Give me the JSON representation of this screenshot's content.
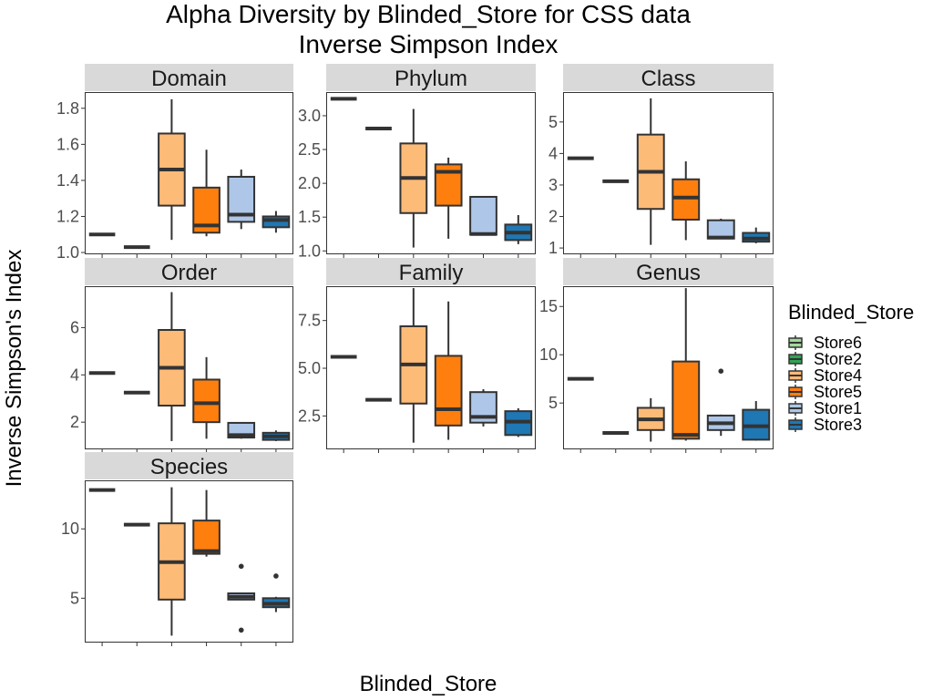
{
  "chart_data": {
    "type": "boxplot",
    "title": "Alpha Diversity by Blinded_Store for CSS data",
    "subtitle": "Inverse Simpson Index",
    "xlabel": "Blinded_Store",
    "ylabel": "Inverse Simpson's Index",
    "legend": {
      "title": "Blinded_Store",
      "position": "right",
      "entries": [
        {
          "name": "Store6",
          "color": "#a1d99b"
        },
        {
          "name": "Store2",
          "color": "#31a354"
        },
        {
          "name": "Store4",
          "color": "#fdbb78"
        },
        {
          "name": "Store5",
          "color": "#ff7f0e"
        },
        {
          "name": "Store1",
          "color": "#aec7e8"
        },
        {
          "name": "Store3",
          "color": "#1f77b4"
        }
      ]
    },
    "categories": [
      "Store6",
      "Store2",
      "Store4",
      "Store5",
      "Store1",
      "Store3"
    ],
    "grid": false,
    "panels": [
      {
        "label": "Domain",
        "ylim": [
          0.99,
          1.89
        ],
        "yticks": [
          {
            "v": 1.0,
            "t": "1.0"
          },
          {
            "v": 1.2,
            "t": "1.2"
          },
          {
            "v": 1.4,
            "t": "1.4"
          },
          {
            "v": 1.6,
            "t": "1.6"
          },
          {
            "v": 1.8,
            "t": "1.8"
          }
        ],
        "boxes": [
          {
            "store": "Store6",
            "min": 1.1,
            "q1": 1.1,
            "median": 1.1,
            "q3": 1.1,
            "max": 1.1,
            "outliers": []
          },
          {
            "store": "Store2",
            "min": 1.03,
            "q1": 1.03,
            "median": 1.03,
            "q3": 1.03,
            "max": 1.03,
            "outliers": []
          },
          {
            "store": "Store4",
            "min": 1.07,
            "q1": 1.26,
            "median": 1.46,
            "q3": 1.66,
            "max": 1.85,
            "outliers": []
          },
          {
            "store": "Store5",
            "min": 1.09,
            "q1": 1.11,
            "median": 1.15,
            "q3": 1.36,
            "max": 1.57,
            "outliers": []
          },
          {
            "store": "Store1",
            "min": 1.13,
            "q1": 1.17,
            "median": 1.21,
            "q3": 1.42,
            "max": 1.46,
            "outliers": []
          },
          {
            "store": "Store3",
            "min": 1.11,
            "q1": 1.14,
            "median": 1.18,
            "q3": 1.2,
            "max": 1.23,
            "outliers": []
          }
        ]
      },
      {
        "label": "Phylum",
        "ylim": [
          0.95,
          3.35
        ],
        "yticks": [
          {
            "v": 1.0,
            "t": "1.0"
          },
          {
            "v": 1.5,
            "t": "1.5"
          },
          {
            "v": 2.0,
            "t": "2.0"
          },
          {
            "v": 2.5,
            "t": "2.5"
          },
          {
            "v": 3.0,
            "t": "3.0"
          }
        ],
        "boxes": [
          {
            "store": "Store6",
            "min": 3.25,
            "q1": 3.25,
            "median": 3.25,
            "q3": 3.25,
            "max": 3.25,
            "outliers": []
          },
          {
            "store": "Store2",
            "min": 2.81,
            "q1": 2.81,
            "median": 2.81,
            "q3": 2.81,
            "max": 2.81,
            "outliers": []
          },
          {
            "store": "Store4",
            "min": 1.05,
            "q1": 1.56,
            "median": 2.08,
            "q3": 2.59,
            "max": 3.1,
            "outliers": []
          },
          {
            "store": "Store5",
            "min": 1.18,
            "q1": 1.67,
            "median": 2.17,
            "q3": 2.28,
            "max": 2.38,
            "outliers": []
          },
          {
            "store": "Store1",
            "min": 1.24,
            "q1": 1.24,
            "median": 1.25,
            "q3": 1.8,
            "max": 1.8,
            "outliers": []
          },
          {
            "store": "Store3",
            "min": 1.1,
            "q1": 1.16,
            "median": 1.27,
            "q3": 1.39,
            "max": 1.53,
            "outliers": []
          }
        ]
      },
      {
        "label": "Class",
        "ylim": [
          0.8,
          5.95
        ],
        "yticks": [
          {
            "v": 1,
            "t": "1"
          },
          {
            "v": 2,
            "t": "2"
          },
          {
            "v": 3,
            "t": "3"
          },
          {
            "v": 4,
            "t": "4"
          },
          {
            "v": 5,
            "t": "5"
          }
        ],
        "boxes": [
          {
            "store": "Store6",
            "min": 3.85,
            "q1": 3.85,
            "median": 3.85,
            "q3": 3.85,
            "max": 3.85,
            "outliers": []
          },
          {
            "store": "Store2",
            "min": 3.12,
            "q1": 3.12,
            "median": 3.12,
            "q3": 3.12,
            "max": 3.12,
            "outliers": []
          },
          {
            "store": "Store4",
            "min": 1.1,
            "q1": 2.24,
            "median": 3.42,
            "q3": 4.6,
            "max": 5.75,
            "outliers": []
          },
          {
            "store": "Store5",
            "min": 1.25,
            "q1": 1.9,
            "median": 2.6,
            "q3": 3.18,
            "max": 3.75,
            "outliers": []
          },
          {
            "store": "Store1",
            "min": 1.28,
            "q1": 1.3,
            "median": 1.33,
            "q3": 1.88,
            "max": 1.93,
            "outliers": []
          },
          {
            "store": "Store3",
            "min": 1.15,
            "q1": 1.2,
            "median": 1.3,
            "q3": 1.48,
            "max": 1.65,
            "outliers": []
          }
        ]
      },
      {
        "label": "Order",
        "ylim": [
          0.85,
          7.75
        ],
        "yticks": [
          {
            "v": 2,
            "t": "2"
          },
          {
            "v": 4,
            "t": "4"
          },
          {
            "v": 6,
            "t": "6"
          }
        ],
        "boxes": [
          {
            "store": "Store6",
            "min": 4.08,
            "q1": 4.08,
            "median": 4.08,
            "q3": 4.08,
            "max": 4.08,
            "outliers": []
          },
          {
            "store": "Store2",
            "min": 3.25,
            "q1": 3.25,
            "median": 3.25,
            "q3": 3.25,
            "max": 3.25,
            "outliers": []
          },
          {
            "store": "Store4",
            "min": 1.2,
            "q1": 2.7,
            "median": 4.3,
            "q3": 5.9,
            "max": 7.5,
            "outliers": []
          },
          {
            "store": "Store5",
            "min": 1.3,
            "q1": 2.0,
            "median": 2.8,
            "q3": 3.8,
            "max": 4.75,
            "outliers": []
          },
          {
            "store": "Store1",
            "min": 1.3,
            "q1": 1.35,
            "median": 1.45,
            "q3": 1.97,
            "max": 2.0,
            "outliers": []
          },
          {
            "store": "Store3",
            "min": 1.2,
            "q1": 1.25,
            "median": 1.4,
            "q3": 1.55,
            "max": 1.65,
            "outliers": []
          }
        ]
      },
      {
        "label": "Family",
        "ylim": [
          0.75,
          9.3
        ],
        "yticks": [
          {
            "v": 2.5,
            "t": "2.5"
          },
          {
            "v": 5.0,
            "t": "5.0"
          },
          {
            "v": 7.5,
            "t": "7.5"
          }
        ],
        "boxes": [
          {
            "store": "Store6",
            "min": 5.6,
            "q1": 5.6,
            "median": 5.6,
            "q3": 5.6,
            "max": 5.6,
            "outliers": []
          },
          {
            "store": "Store2",
            "min": 3.35,
            "q1": 3.35,
            "median": 3.35,
            "q3": 3.35,
            "max": 3.35,
            "outliers": []
          },
          {
            "store": "Store4",
            "min": 1.1,
            "q1": 3.15,
            "median": 5.2,
            "q3": 7.2,
            "max": 9.2,
            "outliers": []
          },
          {
            "store": "Store5",
            "min": 1.25,
            "q1": 2.0,
            "median": 2.85,
            "q3": 5.65,
            "max": 8.5,
            "outliers": []
          },
          {
            "store": "Store1",
            "min": 1.95,
            "q1": 2.15,
            "median": 2.45,
            "q3": 3.75,
            "max": 3.9,
            "outliers": []
          },
          {
            "store": "Store3",
            "min": 1.4,
            "q1": 1.5,
            "median": 2.2,
            "q3": 2.75,
            "max": 2.9,
            "outliers": []
          }
        ]
      },
      {
        "label": "Genus",
        "ylim": [
          0.2,
          17.1
        ],
        "yticks": [
          {
            "v": 5,
            "t": "5"
          },
          {
            "v": 10,
            "t": "10"
          },
          {
            "v": 15,
            "t": "15"
          }
        ],
        "boxes": [
          {
            "store": "Store6",
            "min": 7.5,
            "q1": 7.5,
            "median": 7.5,
            "q3": 7.5,
            "max": 7.5,
            "outliers": []
          },
          {
            "store": "Store2",
            "min": 1.9,
            "q1": 1.9,
            "median": 1.9,
            "q3": 1.9,
            "max": 1.9,
            "outliers": []
          },
          {
            "store": "Store4",
            "min": 1.0,
            "q1": 2.2,
            "median": 3.3,
            "q3": 4.5,
            "max": 5.5,
            "outliers": []
          },
          {
            "store": "Store5",
            "min": 1.1,
            "q1": 1.3,
            "median": 1.7,
            "q3": 9.3,
            "max": 16.9,
            "outliers": []
          },
          {
            "store": "Store1",
            "min": 1.6,
            "q1": 2.2,
            "median": 2.9,
            "q3": 3.7,
            "max": 3.8,
            "outliers": [
              8.3
            ]
          },
          {
            "store": "Store3",
            "min": 1.1,
            "q1": 1.2,
            "median": 2.6,
            "q3": 4.3,
            "max": 5.2,
            "outliers": []
          }
        ]
      },
      {
        "label": "Species",
        "ylim": [
          1.8,
          13.5
        ],
        "yticks": [
          {
            "v": 5,
            "t": "5"
          },
          {
            "v": 10,
            "t": "10"
          }
        ],
        "boxes": [
          {
            "store": "Store6",
            "min": 12.8,
            "q1": 12.8,
            "median": 12.8,
            "q3": 12.8,
            "max": 12.8,
            "outliers": []
          },
          {
            "store": "Store2",
            "min": 10.3,
            "q1": 10.3,
            "median": 10.3,
            "q3": 10.3,
            "max": 10.3,
            "outliers": []
          },
          {
            "store": "Store4",
            "min": 2.3,
            "q1": 4.9,
            "median": 7.6,
            "q3": 10.4,
            "max": 13.0,
            "outliers": []
          },
          {
            "store": "Store5",
            "min": 8.0,
            "q1": 8.2,
            "median": 8.4,
            "q3": 10.6,
            "max": 12.8,
            "outliers": []
          },
          {
            "store": "Store1",
            "min": 4.85,
            "q1": 4.9,
            "median": 5.1,
            "q3": 5.35,
            "max": 5.4,
            "outliers": [
              7.3,
              2.7
            ]
          },
          {
            "store": "Store3",
            "min": 4.0,
            "q1": 4.35,
            "median": 4.6,
            "q3": 5.0,
            "max": 5.1,
            "outliers": [
              6.6
            ]
          }
        ]
      }
    ]
  }
}
